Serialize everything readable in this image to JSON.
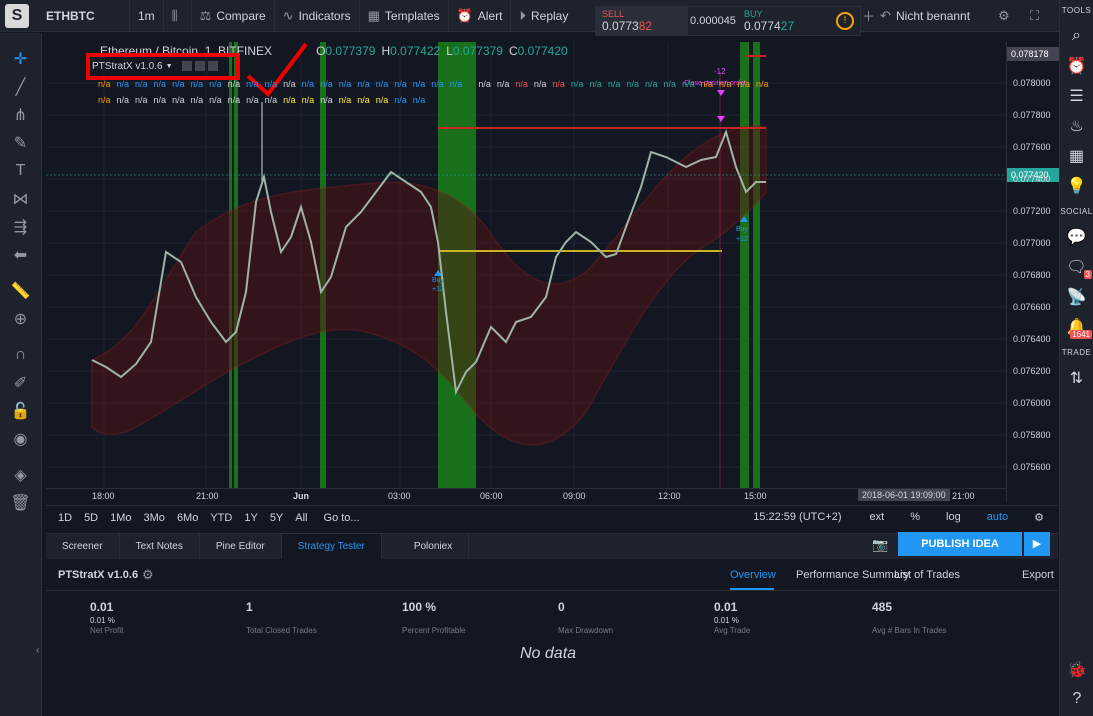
{
  "topbar": {
    "logo": "S",
    "symbol": "ETHBTC",
    "interval": "1m",
    "compare": "Compare",
    "indicators": "Indicators",
    "templates": "Templates",
    "alert": "Alert",
    "replay": "Replay",
    "sell_label": "SELL",
    "sell_main": "0.0773",
    "sell_tail": "82",
    "spread": "0.000045",
    "buy_label": "BUY",
    "buy_main": "0.0774",
    "buy_tail": "27",
    "layout_name": "Nicht benannt"
  },
  "legend": {
    "title": "Ethereum / Bitcoin, 1, BITFINEX",
    "o": "O",
    "o_val": "0.077379",
    "h": "H",
    "h_val": "0.077422",
    "l": "L",
    "l_val": "0.077379",
    "c": "C",
    "c_val": "0.077420"
  },
  "indicator": {
    "name": "PTStratX v1.0.6"
  },
  "na_text": "n/a",
  "annotations": {
    "minus12": "-12",
    "close_position": "Close position order",
    "buy_left": "Buy",
    "buy_left_n": "+12",
    "buy_right": "Buy",
    "buy_right_n": "+12"
  },
  "price_axis": {
    "top_badge": "0.078178",
    "current_badge": "0.077420",
    "labels": [
      "0.078000",
      "0.077800",
      "0.077600",
      "0.077400",
      "0.077200",
      "0.077000",
      "0.076800",
      "0.076600",
      "0.076400",
      "0.076200",
      "0.076000",
      "0.075800",
      "0.075600"
    ]
  },
  "time_axis": {
    "labels": [
      "18:00",
      "21:00",
      "Jun",
      "03:00",
      "06:00",
      "09:00",
      "12:00",
      "15:00",
      "21:00"
    ],
    "cursor": "2018-06-01 19:09:00"
  },
  "periodbar": {
    "periods": [
      "1D",
      "5D",
      "1Mo",
      "3Mo",
      "6Mo",
      "YTD",
      "1Y",
      "5Y",
      "All"
    ],
    "goto": "Go to...",
    "clock": "15:22:59 (UTC+2)",
    "ext": "ext",
    "pct": "%",
    "log": "log",
    "auto": "auto"
  },
  "bottom_tabs": [
    "Screener",
    "Text Notes",
    "Pine Editor",
    "Strategy Tester",
    "Poloniex"
  ],
  "publish": "PUBLISH IDEA",
  "tester": {
    "title": "PTStratX v1.0.6",
    "tabs": [
      "Overview",
      "Performance Summary",
      "List of Trades",
      "Export"
    ],
    "metrics": [
      {
        "value": "0.01",
        "sub": "0.01 %",
        "label": "Net Profit"
      },
      {
        "value": "1",
        "sub": "",
        "label": "Total Closed Trades"
      },
      {
        "value": "100 %",
        "sub": "",
        "label": "Percent Profitable"
      },
      {
        "value": "0",
        "sub": "",
        "label": "Max Drawdown"
      },
      {
        "value": "0.01",
        "sub": "0.01 %",
        "label": "Avg Trade"
      },
      {
        "value": "485",
        "sub": "",
        "label": "Avg # Bars In Trades"
      }
    ],
    "nodata": "No data"
  },
  "right_toolbar": {
    "tools": "TOOLS",
    "social": "SOCIAL",
    "trade": "TRADE",
    "badge_chat": "3",
    "badge_stream": "1641"
  },
  "colors": {
    "bg": "#131722",
    "green_zone": "#1b7a1b",
    "band": "#8b1a1a",
    "accent": "#2196f3",
    "price_badge": "#26a69a"
  }
}
